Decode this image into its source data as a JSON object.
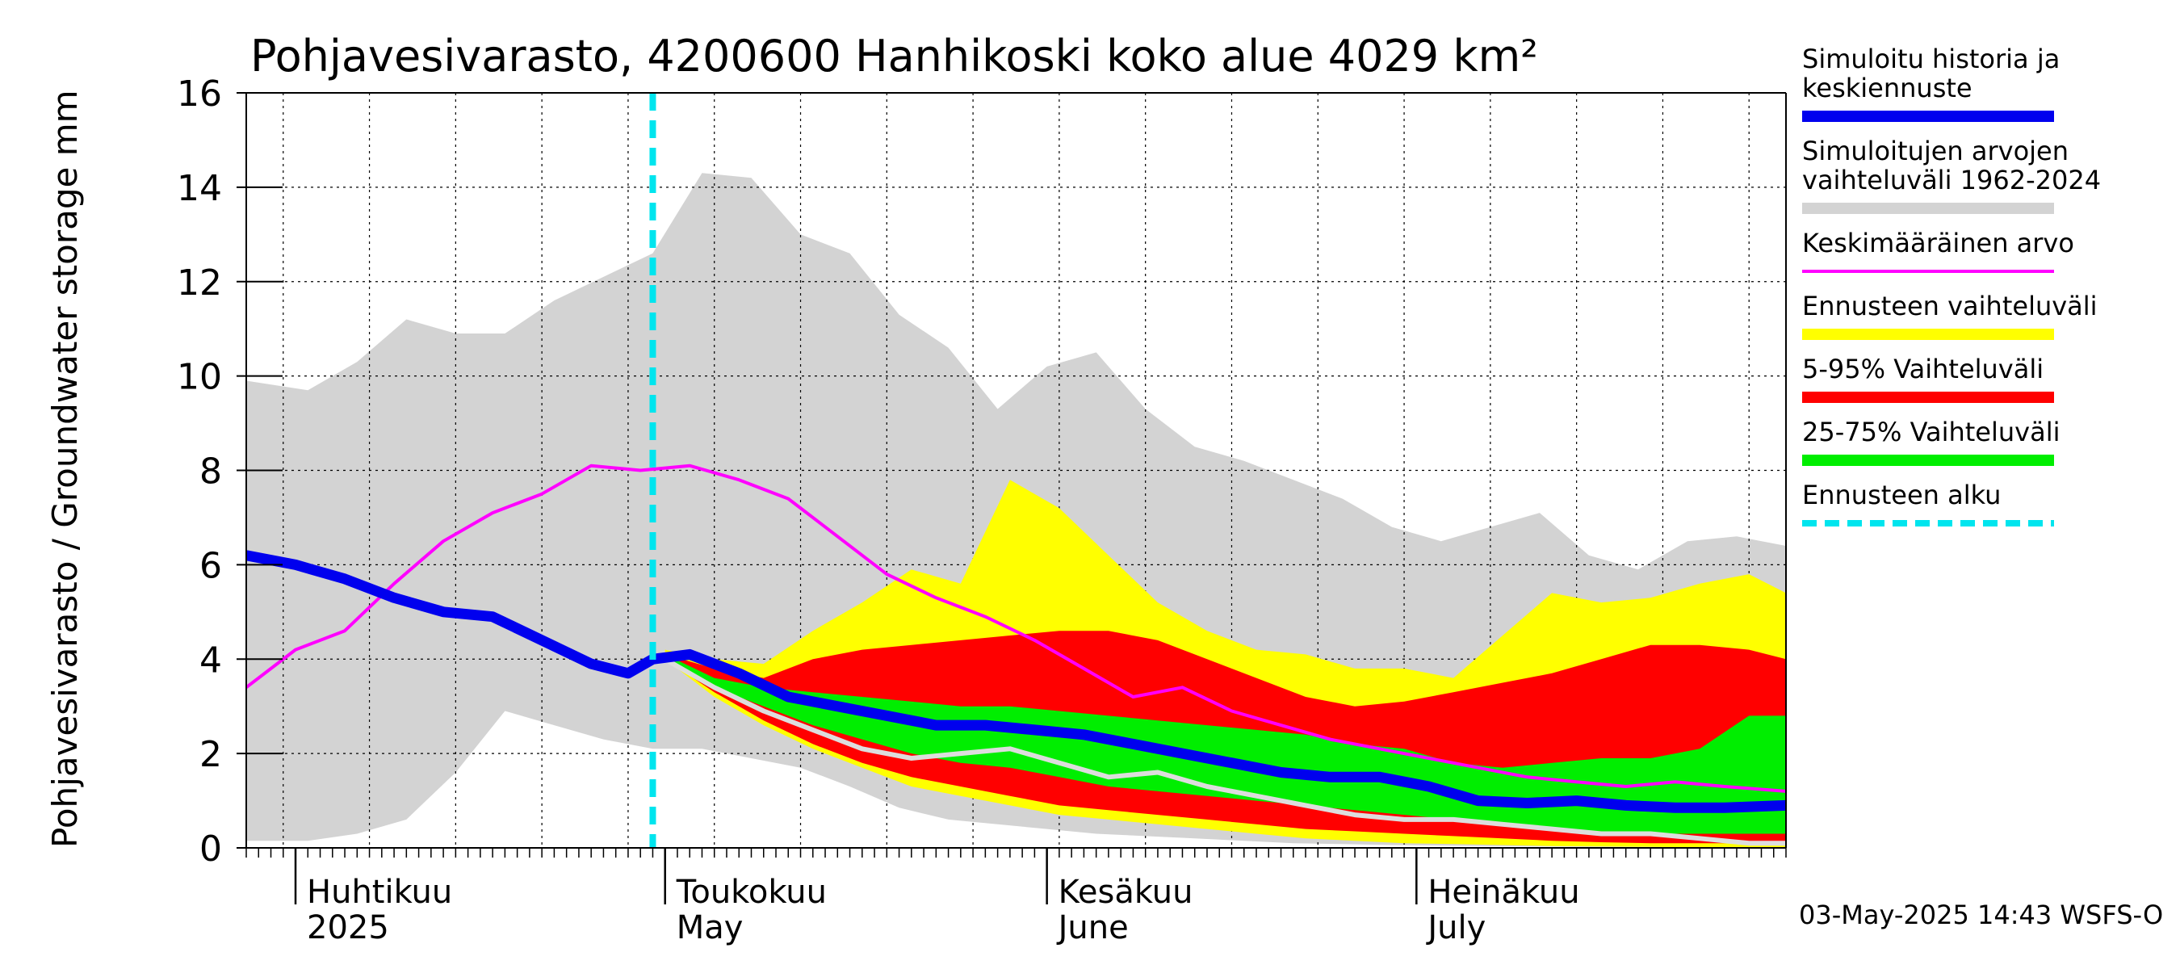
{
  "chart_data": {
    "type": "area",
    "title": "Pohjavesivarasto, 4200600 Hanhikoski koko alue 4029 km²",
    "ylabel": "Pohjavesivarasto / Groundwater storage   mm",
    "ylim": [
      0,
      16
    ],
    "yticks": [
      "0",
      "2",
      "4",
      "6",
      "8",
      "10",
      "12",
      "14",
      "16"
    ],
    "xrange": [
      "2025-03-28",
      "2025-07-31"
    ],
    "month_labels": [
      {
        "line1": "Huhtikuu",
        "line2": "2025",
        "date": "2025-04-01"
      },
      {
        "line1": "Toukokuu",
        "line2": "May",
        "date": "2025-05-01"
      },
      {
        "line1": "Kesäkuu",
        "line2": "June",
        "date": "2025-06-01"
      },
      {
        "line1": "Heinäkuu",
        "line2": "July",
        "date": "2025-07-01"
      }
    ],
    "forecast_start": "2025-04-30",
    "footer": "03-May-2025 14:43 WSFS-O",
    "colors": {
      "hist_range": "#d3d3d3",
      "mean": "#ff00ff",
      "forecast_range": "#ffff00",
      "p5_95": "#ff0000",
      "p25_75": "#00ee00",
      "simulated": "#0000ee",
      "forecast_start": "#00e5ee",
      "white_line": "#dddddd"
    },
    "legend": [
      {
        "label": "Simuloitu historia ja keskiennuste",
        "lines": [
          "Simuloitu historia ja",
          "keskiennuste"
        ],
        "style": "thick",
        "color": "#0000ee"
      },
      {
        "label": "Simuloitujen arvojen vaihteluväli 1962-2024",
        "lines": [
          "Simuloitujen arvojen",
          "vaihteluväli 1962-2024"
        ],
        "style": "band",
        "color": "#d3d3d3"
      },
      {
        "label": "Keskimääräinen arvo",
        "lines": [
          "Keskimääräinen arvo"
        ],
        "style": "thin",
        "color": "#ff00ff"
      },
      {
        "label": "Ennusteen vaihteluväli",
        "lines": [
          "Ennusteen vaihteluväli"
        ],
        "style": "band",
        "color": "#ffff00"
      },
      {
        "label": "5-95% Vaihteluväli",
        "lines": [
          "5-95% Vaihteluväli"
        ],
        "style": "band",
        "color": "#ff0000"
      },
      {
        "label": "25-75% Vaihteluväli",
        "lines": [
          "25-75% Vaihteluväli"
        ],
        "style": "band",
        "color": "#00ee00"
      },
      {
        "label": "Ennusteen alku",
        "lines": [
          "Ennusteen alku"
        ],
        "style": "dashed",
        "color": "#00e5ee"
      }
    ],
    "series": {
      "hist_range": {
        "x": [
          "2025-03-28",
          "2025-04-02",
          "2025-04-06",
          "2025-04-10",
          "2025-04-14",
          "2025-04-18",
          "2025-04-22",
          "2025-04-26",
          "2025-04-30",
          "2025-05-04",
          "2025-05-08",
          "2025-05-12",
          "2025-05-16",
          "2025-05-20",
          "2025-05-24",
          "2025-05-28",
          "2025-06-01",
          "2025-06-05",
          "2025-06-09",
          "2025-06-13",
          "2025-06-17",
          "2025-06-21",
          "2025-06-25",
          "2025-06-29",
          "2025-07-03",
          "2025-07-07",
          "2025-07-11",
          "2025-07-15",
          "2025-07-19",
          "2025-07-23",
          "2025-07-27",
          "2025-07-31"
        ],
        "upper": [
          9.9,
          9.7,
          10.3,
          11.2,
          10.9,
          10.9,
          11.6,
          12.1,
          12.6,
          14.3,
          14.2,
          13.0,
          12.6,
          11.3,
          10.6,
          9.3,
          10.2,
          10.5,
          9.3,
          8.5,
          8.2,
          7.8,
          7.4,
          6.8,
          6.5,
          6.8,
          7.1,
          6.2,
          5.9,
          6.5,
          6.6,
          6.4
        ],
        "lower": [
          0.15,
          0.15,
          0.3,
          0.6,
          1.6,
          2.9,
          2.6,
          2.3,
          2.1,
          2.1,
          1.9,
          1.7,
          1.3,
          0.85,
          0.6,
          0.5,
          0.4,
          0.3,
          0.25,
          0.2,
          0.15,
          0.1,
          0.08,
          0.06,
          0.05,
          0.04,
          0.03,
          0.02,
          0.02,
          0.02,
          0.01,
          0.01
        ]
      },
      "mean": {
        "x": [
          "2025-03-28",
          "2025-04-01",
          "2025-04-05",
          "2025-04-09",
          "2025-04-13",
          "2025-04-17",
          "2025-04-21",
          "2025-04-25",
          "2025-04-29",
          "2025-05-03",
          "2025-05-07",
          "2025-05-11",
          "2025-05-15",
          "2025-05-19",
          "2025-05-23",
          "2025-05-27",
          "2025-05-31",
          "2025-06-04",
          "2025-06-08",
          "2025-06-12",
          "2025-06-16",
          "2025-06-20",
          "2025-06-24",
          "2025-06-28",
          "2025-07-02",
          "2025-07-06",
          "2025-07-10",
          "2025-07-14",
          "2025-07-18",
          "2025-07-22",
          "2025-07-26",
          "2025-07-31"
        ],
        "values": [
          3.4,
          4.2,
          4.6,
          5.6,
          6.5,
          7.1,
          7.5,
          8.1,
          8.0,
          8.1,
          7.8,
          7.4,
          6.6,
          5.8,
          5.3,
          4.9,
          4.4,
          3.8,
          3.2,
          3.4,
          2.9,
          2.6,
          2.3,
          2.1,
          1.9,
          1.7,
          1.5,
          1.4,
          1.3,
          1.4,
          1.3,
          1.2
        ]
      },
      "forecast_range": {
        "x": [
          "2025-05-01",
          "2025-05-05",
          "2025-05-09",
          "2025-05-13",
          "2025-05-17",
          "2025-05-21",
          "2025-05-25",
          "2025-05-29",
          "2025-06-02",
          "2025-06-06",
          "2025-06-10",
          "2025-06-14",
          "2025-06-18",
          "2025-06-22",
          "2025-06-26",
          "2025-06-30",
          "2025-07-04",
          "2025-07-08",
          "2025-07-12",
          "2025-07-16",
          "2025-07-20",
          "2025-07-24",
          "2025-07-28",
          "2025-07-31"
        ],
        "upper": [
          4.2,
          4.0,
          3.9,
          4.6,
          5.2,
          5.9,
          5.6,
          7.8,
          7.2,
          6.2,
          5.2,
          4.6,
          4.2,
          4.1,
          3.8,
          3.8,
          3.6,
          4.5,
          5.4,
          5.2,
          5.3,
          5.6,
          5.8,
          5.4
        ],
        "lower": [
          4.0,
          3.2,
          2.6,
          2.1,
          1.7,
          1.3,
          1.1,
          0.9,
          0.7,
          0.6,
          0.5,
          0.4,
          0.3,
          0.2,
          0.15,
          0.1,
          0.08,
          0.06,
          0.04,
          0.03,
          0.02,
          0.01,
          0.0,
          0.0
        ]
      },
      "p5_95": {
        "x": [
          "2025-05-01",
          "2025-05-05",
          "2025-05-09",
          "2025-05-13",
          "2025-05-17",
          "2025-05-21",
          "2025-05-25",
          "2025-05-29",
          "2025-06-02",
          "2025-06-06",
          "2025-06-10",
          "2025-06-14",
          "2025-06-18",
          "2025-06-22",
          "2025-06-26",
          "2025-06-30",
          "2025-07-04",
          "2025-07-08",
          "2025-07-12",
          "2025-07-16",
          "2025-07-20",
          "2025-07-24",
          "2025-07-28",
          "2025-07-31"
        ],
        "upper": [
          4.1,
          3.8,
          3.6,
          4.0,
          4.2,
          4.3,
          4.4,
          4.5,
          4.6,
          4.6,
          4.4,
          4.0,
          3.6,
          3.2,
          3.0,
          3.1,
          3.3,
          3.5,
          3.7,
          4.0,
          4.3,
          4.3,
          4.2,
          4.0
        ],
        "lower": [
          4.0,
          3.3,
          2.7,
          2.2,
          1.8,
          1.5,
          1.3,
          1.1,
          0.9,
          0.8,
          0.7,
          0.6,
          0.5,
          0.4,
          0.35,
          0.3,
          0.25,
          0.2,
          0.15,
          0.12,
          0.1,
          0.1,
          0.1,
          0.1
        ]
      },
      "p25_75": {
        "x": [
          "2025-05-01",
          "2025-05-05",
          "2025-05-09",
          "2025-05-13",
          "2025-05-17",
          "2025-05-21",
          "2025-05-25",
          "2025-05-29",
          "2025-06-02",
          "2025-06-06",
          "2025-06-10",
          "2025-06-14",
          "2025-06-18",
          "2025-06-22",
          "2025-06-26",
          "2025-06-30",
          "2025-07-04",
          "2025-07-08",
          "2025-07-12",
          "2025-07-16",
          "2025-07-20",
          "2025-07-24",
          "2025-07-28",
          "2025-07-31"
        ],
        "upper": [
          4.1,
          3.6,
          3.4,
          3.3,
          3.2,
          3.1,
          3.0,
          3.0,
          2.9,
          2.8,
          2.7,
          2.6,
          2.5,
          2.4,
          2.2,
          2.1,
          1.8,
          1.7,
          1.8,
          1.9,
          1.9,
          2.1,
          2.8,
          2.8
        ],
        "lower": [
          4.05,
          3.4,
          3.0,
          2.6,
          2.3,
          2.0,
          1.8,
          1.7,
          1.5,
          1.3,
          1.2,
          1.1,
          1.0,
          0.9,
          0.8,
          0.7,
          0.6,
          0.5,
          0.4,
          0.35,
          0.3,
          0.3,
          0.3,
          0.3
        ]
      },
      "simulated": {
        "x": [
          "2025-03-28",
          "2025-04-01",
          "2025-04-05",
          "2025-04-09",
          "2025-04-13",
          "2025-04-17",
          "2025-04-21",
          "2025-04-25",
          "2025-04-28",
          "2025-04-30",
          "2025-05-03",
          "2025-05-07",
          "2025-05-11",
          "2025-05-15",
          "2025-05-19",
          "2025-05-23",
          "2025-05-27",
          "2025-05-31",
          "2025-06-04",
          "2025-06-08",
          "2025-06-12",
          "2025-06-16",
          "2025-06-20",
          "2025-06-24",
          "2025-06-28",
          "2025-07-02",
          "2025-07-06",
          "2025-07-10",
          "2025-07-14",
          "2025-07-18",
          "2025-07-22",
          "2025-07-26",
          "2025-07-31"
        ],
        "values": [
          6.2,
          6.0,
          5.7,
          5.3,
          5.0,
          4.9,
          4.4,
          3.9,
          3.7,
          4.0,
          4.1,
          3.7,
          3.2,
          3.0,
          2.8,
          2.6,
          2.6,
          2.5,
          2.4,
          2.2,
          2.0,
          1.8,
          1.6,
          1.5,
          1.5,
          1.3,
          1.0,
          0.95,
          1.0,
          0.9,
          0.85,
          0.85,
          0.9
        ]
      },
      "white_line": {
        "x": [
          "2025-05-01",
          "2025-05-05",
          "2025-05-09",
          "2025-05-13",
          "2025-05-17",
          "2025-05-21",
          "2025-05-25",
          "2025-05-29",
          "2025-06-02",
          "2025-06-06",
          "2025-06-10",
          "2025-06-14",
          "2025-06-18",
          "2025-06-22",
          "2025-06-26",
          "2025-06-30",
          "2025-07-04",
          "2025-07-08",
          "2025-07-12",
          "2025-07-16",
          "2025-07-20",
          "2025-07-24",
          "2025-07-28",
          "2025-07-31"
        ],
        "values": [
          4.0,
          3.4,
          2.9,
          2.5,
          2.1,
          1.9,
          2.0,
          2.1,
          1.8,
          1.5,
          1.6,
          1.3,
          1.1,
          0.9,
          0.7,
          0.6,
          0.6,
          0.5,
          0.4,
          0.3,
          0.3,
          0.2,
          0.1,
          0.1
        ]
      }
    }
  }
}
